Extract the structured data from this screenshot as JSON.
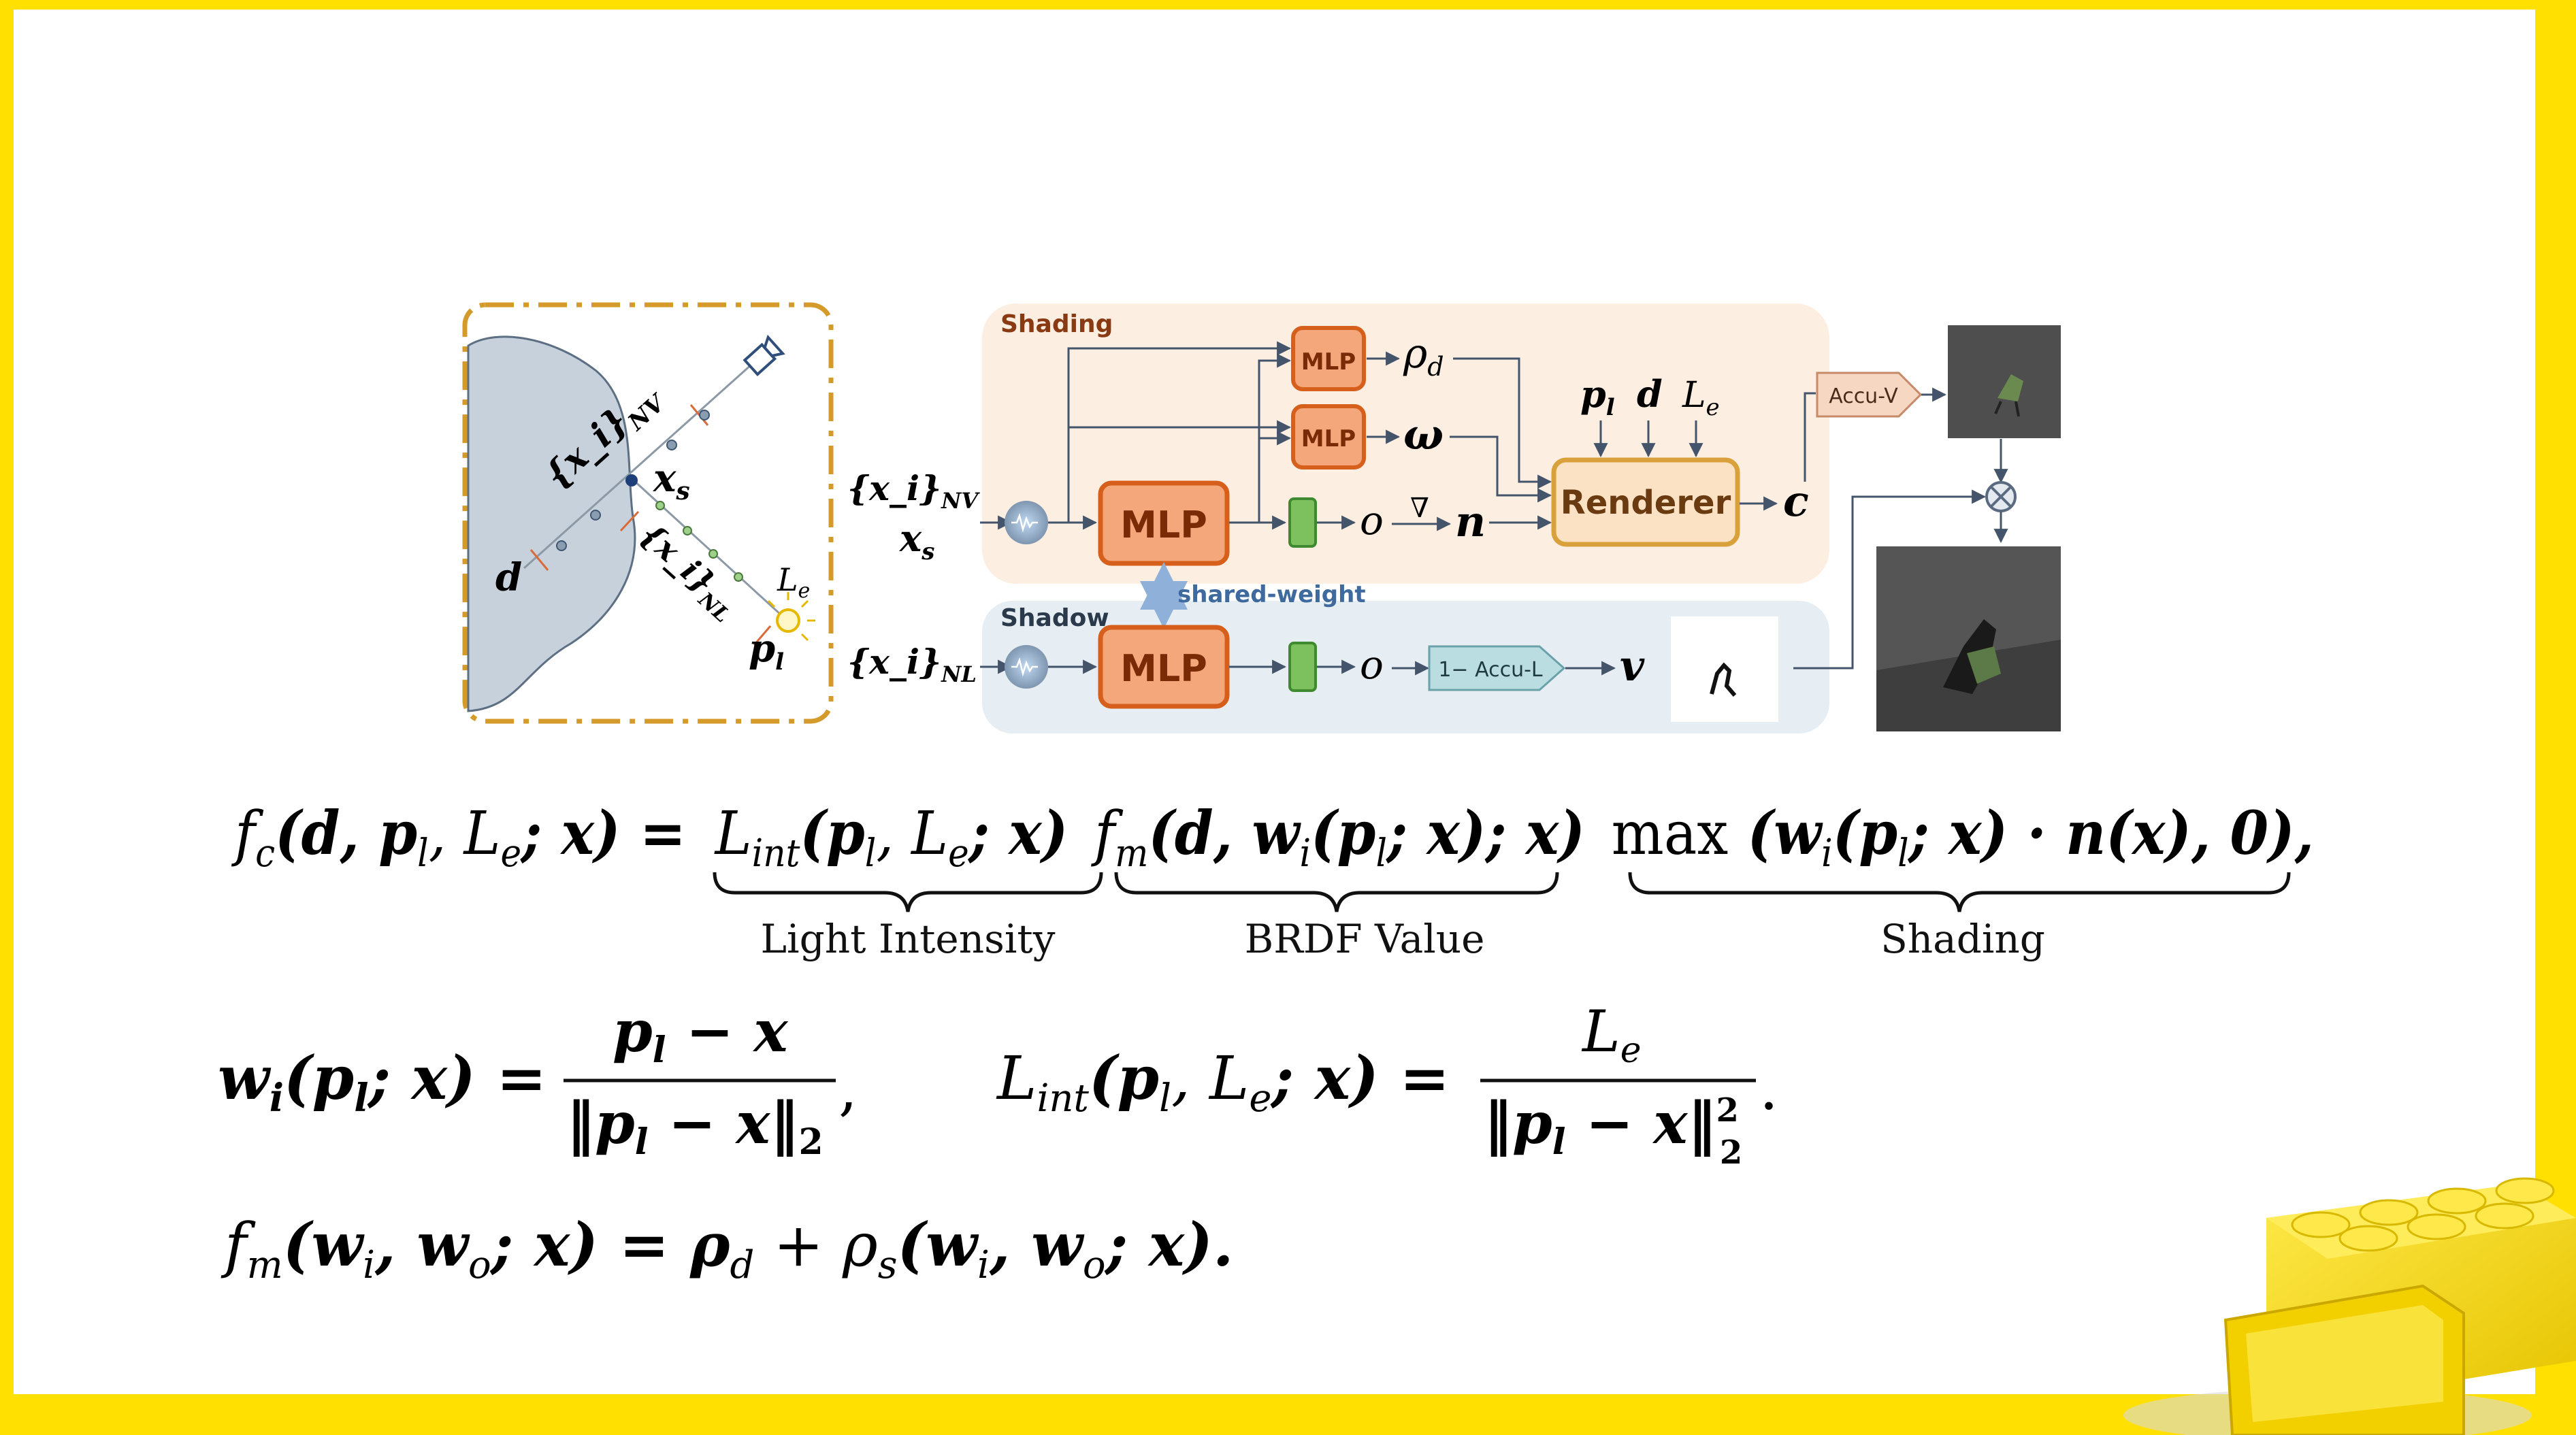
{
  "colors": {
    "frame": "#ffe000",
    "slide_bg": "#ffffff",
    "shading_bg": "#fdeee2",
    "shadow_bg": "#e6edf3",
    "mlp_fill": "#f3a77a",
    "mlp_stroke": "#d65f1c",
    "mlp_text": "#7a2a05",
    "renderer_fill": "#fbe2c4",
    "renderer_stroke": "#d8a13b",
    "density_fill": "#7cc15e",
    "arrow": "#44546a",
    "dash_box": "#d49a2a",
    "object_fill": "#c6d1dc",
    "shared_arrow": "#8fb0d8",
    "accu_v_fill": "#f5d7c2",
    "accu_l_fill": "#b9dde1",
    "brand_yellow": "#f5d80c"
  },
  "diagram": {
    "geometry": {
      "x_i_NV": "{x_i}",
      "NV_sub": "NV",
      "x_s": "x",
      "x_s_sub": "s",
      "x_i_NL": "{x_i}",
      "NL_sub": "NL",
      "d": "d",
      "L_e": "L",
      "L_e_sub": "e",
      "p_l": "p",
      "p_l_sub": "l"
    },
    "pipeline": {
      "shading_label": "Shading",
      "shadow_label": "Shadow",
      "input_top": "{x_i}",
      "input_top_sub": "NV",
      "input_xs": "x",
      "input_xs_sub": "s",
      "input_bottom": "{x_i}",
      "input_bottom_sub": "NL",
      "mlp_main": "MLP",
      "mlp_small": "MLP",
      "mlp_shadow": "MLP",
      "shared_weight": "shared-weight",
      "rho_d": "ρ",
      "rho_d_sub": "d",
      "omega": "ω",
      "o_top": "o",
      "nabla": "∇",
      "n": "n",
      "o_bottom": "o",
      "renderer": "Renderer",
      "renderer_inputs": [
        {
          "sym": "p",
          "sub": "l"
        },
        {
          "sym": "d",
          "sub": ""
        },
        {
          "sym": "L",
          "sub": "e"
        }
      ],
      "c": "c",
      "accu_v": "Accu-V",
      "accu_l": "1− Accu-L",
      "v": "v",
      "times": "⊗"
    }
  },
  "equations": {
    "eq1": "f_c(d, p_l, L_e; x) = L_int(p_l, L_e; x) f_m(d, w_i(p_l; x); x) max(w_i(p_l; x) · n(x), 0),",
    "eq1_parts": {
      "lhs": "f",
      "lhs_sub": "c",
      "lhs_args": "(d, p",
      "lhs_args_sub": "l",
      "lhs_args2": ", L",
      "lhs_args2_sub": "e",
      "lhs_args3": "; x) =",
      "t1": "L",
      "t1_sub": "int",
      "t1_args": "(p",
      "t1_args_sub": "l",
      "t1_args2": ", L",
      "t1_args2_sub": "e",
      "t1_args3": "; x)",
      "t2": "f",
      "t2_sub": "m",
      "t2_args": "(d, w",
      "t2_args_sub": "i",
      "t2_args2": "(p",
      "t2_args2_sub": "l",
      "t2_args3": "; x); x)",
      "t3": "max",
      "t3_args": " (w",
      "t3_args_sub": "i",
      "t3_args2": "(p",
      "t3_args2_sub": "l",
      "t3_args3": "; x) · n(x), 0),"
    },
    "brace_labels": [
      "Light Intensity",
      "BRDF Value",
      "Shading"
    ],
    "eq2": {
      "lhs": "w",
      "lhs_sub": "i",
      "lhs_args": "(p",
      "lhs_args_sub": "l",
      "lhs_args2": "; x) =",
      "num": "p",
      "num_sub": "l",
      "num_rest": " − x",
      "den": "‖p",
      "den_sub": "l",
      "den_rest": " − x‖",
      "den_sub2": "2",
      "comma": ","
    },
    "eq3": {
      "lhs": "L",
      "lhs_sub": "int",
      "lhs_args": "(p",
      "lhs_args_sub": "l",
      "lhs_args2": ", L",
      "lhs_args2_sub": "e",
      "lhs_args3": "; x) =",
      "num": "L",
      "num_sub": "e",
      "den": "‖p",
      "den_sub": "l",
      "den_rest": " − x‖",
      "den_sup": "2",
      "den_sub2": "2",
      "period": "."
    },
    "eq4": {
      "lhs": "f",
      "lhs_sub": "m",
      "lhs_args": "(w",
      "lhs_args_sub": "i",
      "lhs_args2": ", w",
      "lhs_args2_sub": "o",
      "lhs_args3": "; x) = ρ",
      "lhs_args3_sub": "d",
      "lhs_args4": " + ρ",
      "lhs_args4_sub": "s",
      "lhs_args5": "(w",
      "lhs_args5_sub": "i",
      "lhs_args6": ", w",
      "lhs_args6_sub": "o",
      "lhs_args7": "; x)."
    }
  }
}
